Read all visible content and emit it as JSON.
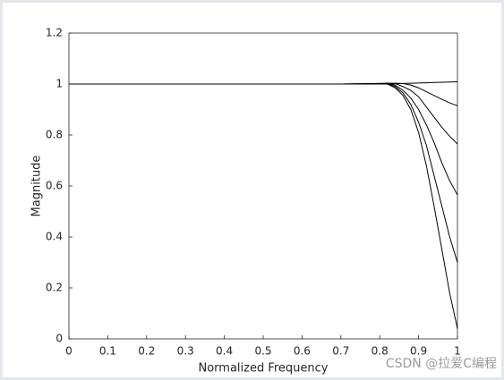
{
  "chart_data": {
    "type": "line",
    "xlabel": "Normalized Frequency",
    "ylabel": "Magnitude",
    "annotation": "CSDN @拉爱C编程",
    "x": [
      0,
      0.1,
      0.2,
      0.3,
      0.4,
      0.5,
      0.6,
      0.7,
      0.8,
      0.82,
      0.84,
      0.86,
      0.88,
      0.9,
      0.92,
      0.94,
      0.96,
      0.98,
      1
    ],
    "series": [
      {
        "color": "#000000",
        "values": [
          1,
          1,
          1,
          1,
          1,
          1,
          1,
          1,
          1,
          1,
          1.001,
          1.002,
          1.003,
          1.004,
          1.005,
          1.006,
          1.007,
          1.008,
          1.009
        ]
      },
      {
        "color": "#000000",
        "values": [
          1,
          1,
          1,
          1,
          1,
          1,
          1,
          1,
          1,
          1.002,
          1.003,
          1.002,
          0.996,
          0.985,
          0.97,
          0.955,
          0.94,
          0.926,
          0.915
        ]
      },
      {
        "color": "#000000",
        "values": [
          1,
          1,
          1,
          1,
          1,
          1,
          1,
          1,
          1,
          1.003,
          1.002,
          0.99,
          0.975,
          0.95,
          0.91,
          0.87,
          0.83,
          0.795,
          0.765
        ]
      },
      {
        "color": "#000000",
        "values": [
          1,
          1,
          1,
          1,
          1,
          1,
          1,
          1,
          1.002,
          1.003,
          0.995,
          0.975,
          0.945,
          0.9,
          0.84,
          0.77,
          0.69,
          0.62,
          0.565
        ]
      },
      {
        "color": "#000000",
        "values": [
          1,
          1,
          1,
          1,
          1,
          1,
          1,
          1,
          1.002,
          1.002,
          0.99,
          0.965,
          0.92,
          0.85,
          0.76,
          0.64,
          0.52,
          0.4,
          0.3
        ]
      },
      {
        "color": "#000000",
        "values": [
          1,
          1,
          1,
          1,
          1,
          1,
          1,
          1,
          1.001,
          1.0,
          0.985,
          0.955,
          0.9,
          0.81,
          0.68,
          0.52,
          0.35,
          0.18,
          0.04
        ]
      }
    ],
    "xlim": [
      0,
      1
    ],
    "xticks": [
      0,
      0.1,
      0.2,
      0.3,
      0.4,
      0.5,
      0.6,
      0.7,
      0.8,
      0.9,
      1
    ],
    "ylim": [
      0,
      1.2
    ],
    "yticks": [
      0,
      0.2,
      0.4,
      0.6,
      0.8,
      1,
      1.2
    ],
    "grid": false
  }
}
